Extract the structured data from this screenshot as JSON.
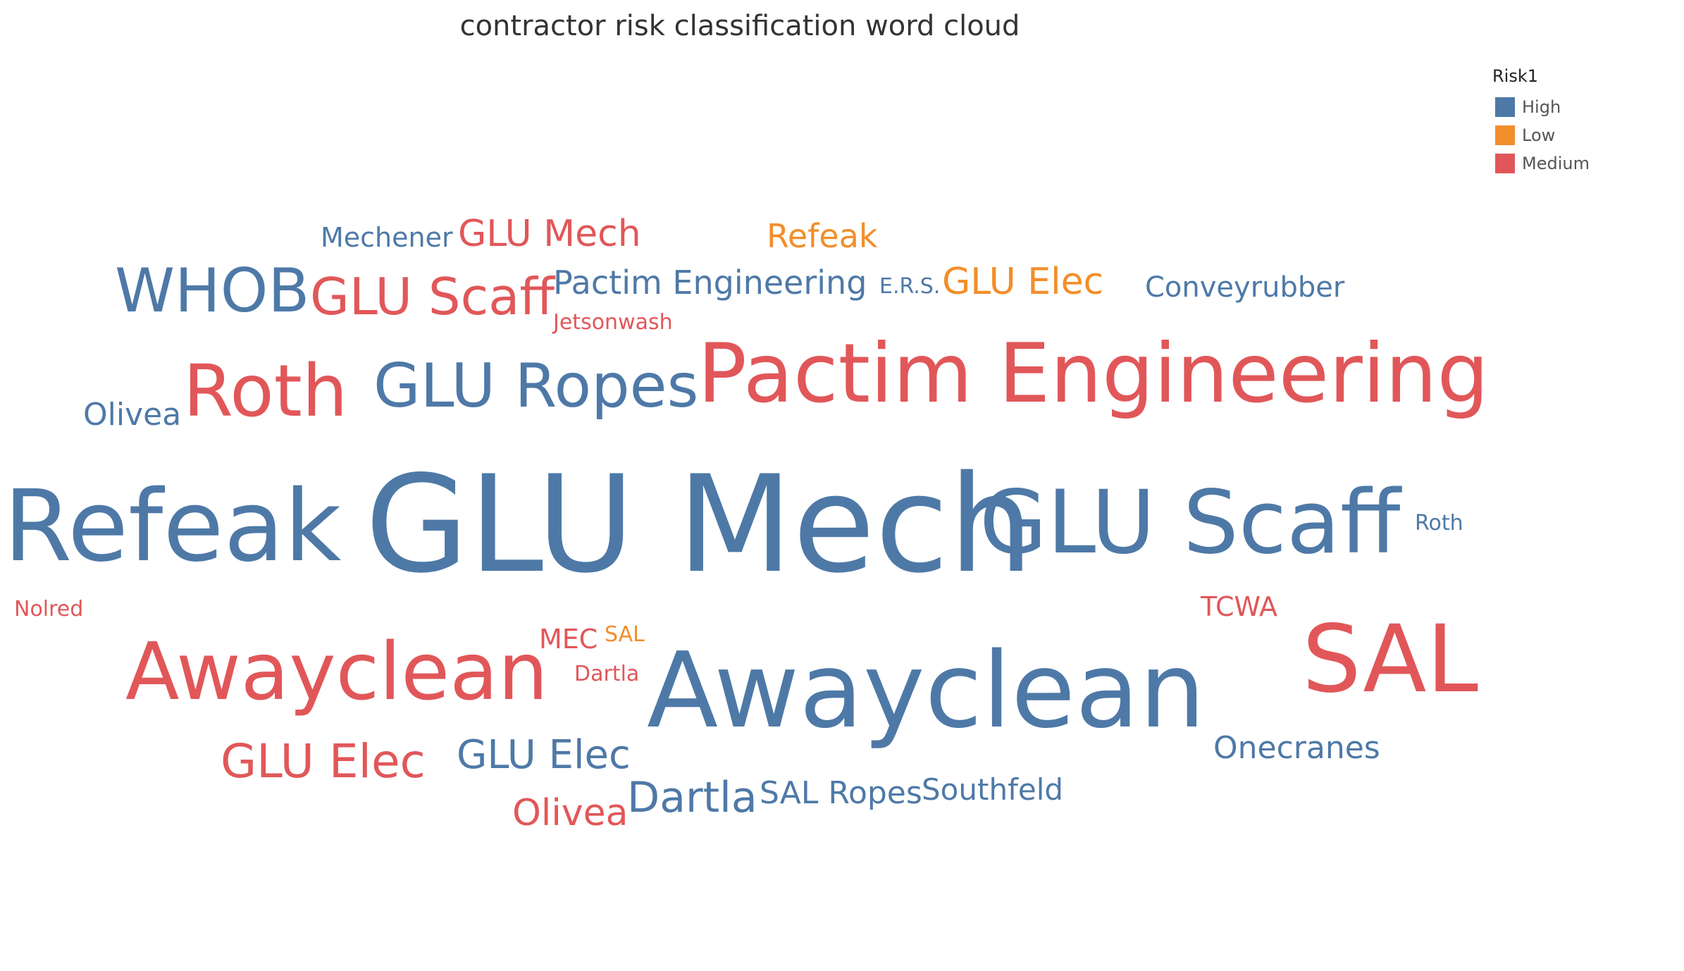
{
  "chart_data": {
    "type": "word_cloud",
    "title": "contractor risk classification word cloud",
    "legend": {
      "title": "Risk1",
      "placement": "top-right",
      "entries": [
        {
          "label": "High",
          "color": "#4e79a7"
        },
        {
          "label": "Low",
          "color": "#f28e2b"
        },
        {
          "label": "Medium",
          "color": "#e15759"
        }
      ]
    },
    "colors": {
      "High": "#4e79a7",
      "Low": "#f28e2b",
      "Medium": "#e15759"
    },
    "words": [
      {
        "text": "Mechener",
        "risk": "High"
      },
      {
        "text": "GLU Mech",
        "risk": "Medium"
      },
      {
        "text": "Refeak",
        "risk": "Low"
      },
      {
        "text": "WHOB",
        "risk": "High"
      },
      {
        "text": "GLU Scaff",
        "risk": "Medium"
      },
      {
        "text": "Pactim Engineering",
        "risk": "High"
      },
      {
        "text": "E.R.S.",
        "risk": "High"
      },
      {
        "text": "GLU Elec",
        "risk": "Low"
      },
      {
        "text": "Conveyrubber",
        "risk": "High"
      },
      {
        "text": "Jetsonwash",
        "risk": "Medium"
      },
      {
        "text": "Olivea",
        "risk": "High"
      },
      {
        "text": "Roth",
        "risk": "Medium"
      },
      {
        "text": "GLU Ropes",
        "risk": "High"
      },
      {
        "text": "Pactim Engineering",
        "risk": "Medium"
      },
      {
        "text": "Refeak",
        "risk": "High"
      },
      {
        "text": "GLU Mech",
        "risk": "High"
      },
      {
        "text": "GLU Scaff",
        "risk": "High"
      },
      {
        "text": "Roth",
        "risk": "High"
      },
      {
        "text": "Nolred",
        "risk": "Medium"
      },
      {
        "text": "TCWA",
        "risk": "Medium"
      },
      {
        "text": "MEC",
        "risk": "Medium"
      },
      {
        "text": "SAL",
        "risk": "Low"
      },
      {
        "text": "Awayclean",
        "risk": "Medium"
      },
      {
        "text": "Dartla",
        "risk": "Medium"
      },
      {
        "text": "Awayclean",
        "risk": "High"
      },
      {
        "text": "SAL",
        "risk": "Medium"
      },
      {
        "text": "GLU Elec",
        "risk": "Medium"
      },
      {
        "text": "GLU Elec",
        "risk": "High"
      },
      {
        "text": "Onecranes",
        "risk": "High"
      },
      {
        "text": "Dartla",
        "risk": "High"
      },
      {
        "text": "SAL Ropes",
        "risk": "High"
      },
      {
        "text": "Southfeld",
        "risk": "High"
      },
      {
        "text": "Olivea",
        "risk": "Medium"
      }
    ]
  }
}
